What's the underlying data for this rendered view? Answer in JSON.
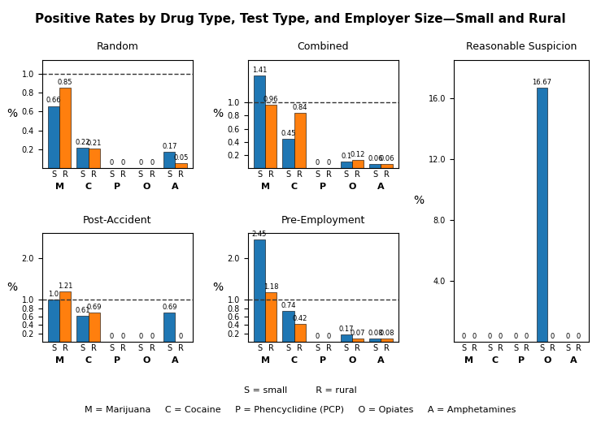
{
  "title": "Positive Rates by Drug Type, Test Type, and Employer Size—Small and Rural",
  "notes": [
    "S = small          R = rural",
    "M = Marijuana     C = Cocaine     P = Phencyclidine (PCP)     O = Opiates     A = Amphetamines"
  ],
  "chart_data": [
    {
      "type": "bar",
      "title": "Random",
      "categories": [
        "M",
        "C",
        "P",
        "O",
        "A"
      ],
      "series": [
        {
          "name": "S",
          "values": [
            0.66,
            0.22,
            0,
            0,
            0.17
          ]
        },
        {
          "name": "R",
          "values": [
            0.85,
            0.21,
            0,
            0,
            0.05
          ]
        }
      ],
      "ylim": [
        0,
        1.15
      ],
      "yticks": [
        0.2,
        0.4,
        0.6,
        0.8,
        {
          "value": 1,
          "label": "1.0"
        }
      ],
      "reference_line": 1.0,
      "data_labels": true,
      "y_label": "%"
    },
    {
      "type": "bar",
      "title": "Combined",
      "categories": [
        "M",
        "C",
        "P",
        "O",
        "A"
      ],
      "series": [
        {
          "name": "S",
          "values": [
            1.41,
            0.45,
            0,
            0.1,
            0.06
          ]
        },
        {
          "name": "R",
          "values": [
            0.96,
            0.84,
            0,
            0.12,
            0.06
          ]
        }
      ],
      "ylim": [
        0,
        1.65
      ],
      "yticks": [
        0.2,
        0.4,
        0.6,
        0.8,
        {
          "value": 1,
          "label": "1.0"
        }
      ],
      "reference_line": 1.0,
      "data_labels": true,
      "y_label": "%"
    },
    {
      "type": "bar",
      "title": "Post-Accident",
      "categories": [
        "M",
        "C",
        "P",
        "O",
        "A"
      ],
      "series": [
        {
          "name": "S",
          "values": [
            1.0,
            0.61,
            0,
            0,
            0.69
          ],
          "value_labels": [
            "1.0",
            "0.61",
            "0",
            "0",
            "0.69"
          ]
        },
        {
          "name": "R",
          "values": [
            1.21,
            0.69,
            0,
            0,
            0
          ]
        }
      ],
      "ylim": [
        0,
        2.6
      ],
      "yticks": [
        0.2,
        0.4,
        0.6,
        0.8,
        {
          "value": 1,
          "label": "1.0"
        },
        {
          "value": 2,
          "label": "2.0"
        }
      ],
      "reference_line": 1.0,
      "data_labels": true,
      "y_label": "%"
    },
    {
      "type": "bar",
      "title": "Pre-Employment",
      "categories": [
        "M",
        "C",
        "P",
        "O",
        "A"
      ],
      "series": [
        {
          "name": "S",
          "values": [
            2.45,
            0.74,
            0,
            0.17,
            0.08
          ]
        },
        {
          "name": "R",
          "values": [
            1.18,
            0.42,
            0,
            0.07,
            0.08
          ]
        }
      ],
      "ylim": [
        0,
        2.6
      ],
      "yticks": [
        0.2,
        0.4,
        0.6,
        0.8,
        {
          "value": 1,
          "label": "1.0"
        },
        {
          "value": 2,
          "label": "2.0"
        }
      ],
      "reference_line": 1.0,
      "data_labels": true,
      "y_label": "%"
    },
    {
      "type": "bar",
      "title": "Reasonable Suspicion",
      "categories": [
        "M",
        "C",
        "P",
        "O",
        "A"
      ],
      "series": [
        {
          "name": "S",
          "values": [
            0,
            0,
            0,
            16.67,
            0
          ]
        },
        {
          "name": "R",
          "values": [
            0,
            0,
            0,
            0,
            0
          ]
        }
      ],
      "ylim": [
        0,
        18.5
      ],
      "yticks": [
        {
          "value": 4,
          "label": "4.0"
        },
        {
          "value": 8,
          "label": "8.0"
        },
        {
          "value": 12,
          "label": "12.0"
        },
        {
          "value": 16,
          "label": "16.0"
        }
      ],
      "data_labels": true,
      "y_label": "%"
    }
  ]
}
